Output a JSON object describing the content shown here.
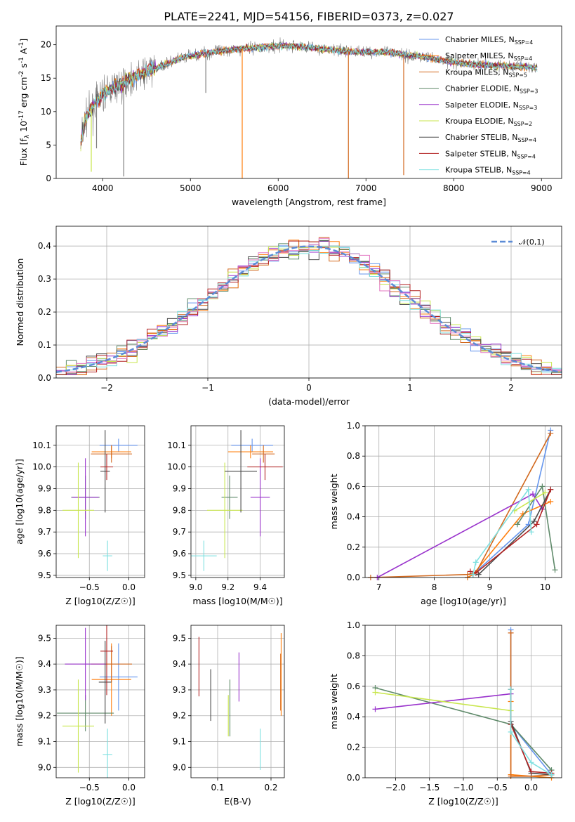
{
  "figure_title": "PLATE=2241, MJD=54156, FIBERID=0373, z=0.027",
  "colors": {
    "Chabrier MILES": "#6495ed",
    "Salpeter MILES": "#ff7f0e",
    "Kroupa MILES": "#d2691e",
    "Chabrier ELODIE": "#5f8a6a",
    "Salpeter ELODIE": "#9932cc",
    "Kroupa ELODIE": "#c8e64c",
    "Chabrier STELIB": "#4a4a4a",
    "Salpeter STELIB": "#b22222",
    "Kroupa STELIB": "#7ee0e0",
    "spectrum": "#808080",
    "normal": "#5b8bd6"
  },
  "chart_data": [
    {
      "id": "spectrum",
      "type": "line",
      "title": "PLATE=2241, MJD=54156, FIBERID=0373, z=0.027",
      "xlabel": "wavelength [Angstrom, rest frame]",
      "ylabel": "Flux [f_λ 10^-17 erg cm^-2 s^-1 A^-1]",
      "xlim": [
        3470,
        9230
      ],
      "ylim": [
        0,
        22.8
      ],
      "xticks": [
        4000,
        5000,
        6000,
        7000,
        8000,
        9000
      ],
      "yticks": [
        0,
        5,
        10,
        15,
        20
      ],
      "grid": false,
      "legend_position": "top-right",
      "legend": [
        {
          "label": "Chabrier MILES, N_SSP=4",
          "color": "#6495ed"
        },
        {
          "label": "Salpeter MILES, N_SSP=4",
          "color": "#ff7f0e"
        },
        {
          "label": "Kroupa MILES, N_SSP=5",
          "color": "#d2691e"
        },
        {
          "label": "Chabrier ELODIE, N_SSP=3",
          "color": "#5f8a6a"
        },
        {
          "label": "Salpeter ELODIE, N_SSP=3",
          "color": "#9932cc"
        },
        {
          "label": "Kroupa ELODIE, N_SSP=2",
          "color": "#c8e64c"
        },
        {
          "label": "Chabrier STELIB, N_SSP=4",
          "color": "#4a4a4a"
        },
        {
          "label": "Salpeter STELIB, N_SSP=4",
          "color": "#b22222"
        },
        {
          "label": "Kroupa STELIB, N_SSP=4",
          "color": "#7ee0e0"
        }
      ],
      "continuum": {
        "x": [
          3750,
          3800,
          3900,
          4000,
          4100,
          4200,
          4300,
          4500,
          4700,
          4900,
          5100,
          5300,
          5500,
          5700,
          5900,
          6100,
          6300,
          6500,
          6700,
          6900,
          7100,
          7300,
          7500,
          7700,
          7900,
          8100,
          8300,
          8500,
          8700,
          8950
        ],
        "y": [
          5.0,
          9.0,
          11.0,
          12.5,
          13.5,
          14.0,
          14.8,
          16.0,
          17.0,
          18.0,
          18.6,
          19.0,
          19.3,
          19.5,
          19.8,
          19.8,
          19.7,
          19.4,
          19.1,
          18.9,
          18.9,
          18.8,
          18.4,
          18.1,
          17.6,
          17.2,
          17.0,
          16.9,
          16.7,
          16.6
        ]
      },
      "dips": [
        {
          "x": 5590,
          "y": 0.0,
          "color": "#ff7f0e"
        },
        {
          "x": 6800,
          "y": 0.0,
          "color": "#d2691e"
        },
        {
          "x": 7430,
          "y": 0.5,
          "color": "#d2691e"
        },
        {
          "x": 3870,
          "y": 1.0,
          "color": "#c8e64c"
        },
        {
          "x": 4240,
          "y": 0.3,
          "color": "#808080"
        },
        {
          "x": 5175,
          "y": 12.8,
          "color": "#808080"
        },
        {
          "x": 3930,
          "y": 4.5,
          "color": "#808080"
        }
      ]
    },
    {
      "id": "residual_hist",
      "type": "line",
      "xlabel": "(data-model)/error",
      "ylabel": "Normed distribution",
      "xlim": [
        -2.5,
        2.5
      ],
      "ylim": [
        0,
        0.46
      ],
      "xticks": [
        -2,
        -1,
        0,
        1,
        2
      ],
      "yticks": [
        0.0,
        0.1,
        0.2,
        0.3,
        0.4
      ],
      "grid": true,
      "legend_position": "top-right",
      "legend": [
        {
          "label": "𝒩(0,1)",
          "color": "#5b8bd6"
        }
      ],
      "bin_width": 0.1,
      "note": "step histograms of normalized residuals, one per model, plus a unit normal curve"
    },
    {
      "id": "age_vs_Z",
      "type": "scatter",
      "xlabel": "Z [log10(Z/Z☉)]",
      "ylabel": "age [log10(age/yr)]",
      "xlim": [
        -0.92,
        0.2
      ],
      "ylim": [
        9.49,
        10.19
      ],
      "xticks": [
        -0.5,
        0.0
      ],
      "yticks": [
        9.5,
        9.6,
        9.7,
        9.8,
        9.9,
        10.0,
        10.1
      ],
      "grid": true,
      "points": [
        {
          "model": "Chabrier MILES",
          "x": -0.13,
          "xerr": 0.24,
          "y": 10.1,
          "yerr": 0.03
        },
        {
          "model": "Salpeter MILES",
          "x": -0.22,
          "xerr": 0.25,
          "y": 10.07,
          "yerr": 0.03
        },
        {
          "model": "Kroupa MILES",
          "x": -0.22,
          "xerr": 0.26,
          "y": 10.06,
          "yerr": 0.04
        },
        {
          "model": "Chabrier ELODIE",
          "x": -0.55,
          "xerr": 0.18,
          "y": 9.86,
          "yerr": 0.1
        },
        {
          "model": "Salpeter ELODIE",
          "x": -0.55,
          "xerr": 0.17,
          "y": 9.86,
          "yerr": 0.18
        },
        {
          "model": "Kroupa ELODIE",
          "x": -0.64,
          "xerr": 0.2,
          "y": 9.8,
          "yerr": 0.22
        },
        {
          "model": "Chabrier STELIB",
          "x": -0.3,
          "xerr": 0.06,
          "y": 9.98,
          "yerr": 0.19
        },
        {
          "model": "Salpeter STELIB",
          "x": -0.28,
          "xerr": 0.08,
          "y": 10.0,
          "yerr": 0.06
        },
        {
          "model": "Kroupa STELIB",
          "x": -0.27,
          "xerr": 0.06,
          "y": 9.59,
          "yerr": 0.07
        }
      ]
    },
    {
      "id": "age_vs_mass",
      "type": "scatter",
      "xlabel": "mass [log10(M/M☉)]",
      "ylabel": "",
      "xlim": [
        8.97,
        9.55
      ],
      "ylim": [
        9.49,
        10.19
      ],
      "xticks": [
        9.0,
        9.2,
        9.4
      ],
      "yticks": [
        9.5,
        9.6,
        9.7,
        9.8,
        9.9,
        10.0,
        10.1
      ],
      "grid": true,
      "points": [
        {
          "model": "Chabrier MILES",
          "x": 9.35,
          "xerr": 0.13,
          "y": 10.1,
          "yerr": 0.03
        },
        {
          "model": "Salpeter MILES",
          "x": 9.34,
          "xerr": 0.14,
          "y": 10.07,
          "yerr": 0.03
        },
        {
          "model": "Kroupa MILES",
          "x": 9.42,
          "xerr": 0.07,
          "y": 10.06,
          "yerr": 0.04
        },
        {
          "model": "Chabrier ELODIE",
          "x": 9.21,
          "xerr": 0.05,
          "y": 9.86,
          "yerr": 0.1
        },
        {
          "model": "Salpeter ELODIE",
          "x": 9.4,
          "xerr": 0.06,
          "y": 9.86,
          "yerr": 0.18
        },
        {
          "model": "Kroupa ELODIE",
          "x": 9.18,
          "xerr": 0.11,
          "y": 9.8,
          "yerr": 0.22
        },
        {
          "model": "Chabrier STELIB",
          "x": 9.28,
          "xerr": 0.1,
          "y": 9.98,
          "yerr": 0.19
        },
        {
          "model": "Salpeter STELIB",
          "x": 9.43,
          "xerr": 0.11,
          "y": 10.0,
          "yerr": 0.06
        },
        {
          "model": "Kroupa STELIB",
          "x": 9.05,
          "xerr": 0.08,
          "y": 9.59,
          "yerr": 0.07
        }
      ]
    },
    {
      "id": "weight_vs_age",
      "type": "line",
      "xlabel": "age [log10(age/yr)]",
      "ylabel": "mass weight",
      "xlim": [
        6.75,
        10.3
      ],
      "ylim": [
        0,
        1
      ],
      "xticks": [
        7,
        8,
        9,
        10
      ],
      "yticks": [
        0.0,
        0.2,
        0.4,
        0.6,
        0.8,
        1.0
      ],
      "grid": true,
      "series": [
        {
          "model": "Chabrier MILES",
          "x": [
            8.6,
            8.7,
            9.7,
            10.1
          ],
          "y": [
            0.0,
            0.02,
            0.35,
            0.97
          ]
        },
        {
          "model": "Salpeter MILES",
          "x": [
            8.6,
            8.7,
            9.6,
            10.1
          ],
          "y": [
            0.0,
            0.02,
            0.42,
            0.5
          ]
        },
        {
          "model": "Kroupa MILES",
          "x": [
            6.85,
            8.6,
            8.75,
            10.1
          ],
          "y": [
            0.0,
            0.02,
            0.03,
            0.95
          ]
        },
        {
          "model": "Chabrier ELODIE",
          "x": [
            9.5,
            9.95,
            10.18
          ],
          "y": [
            0.35,
            0.6,
            0.05
          ]
        },
        {
          "model": "Salpeter ELODIE",
          "x": [
            6.97,
            9.78,
            9.95
          ],
          "y": [
            0.0,
            0.55,
            0.45
          ]
        },
        {
          "model": "Kroupa ELODIE",
          "x": [
            9.45,
            10.0
          ],
          "y": [
            0.44,
            0.56
          ]
        },
        {
          "model": "Chabrier STELIB",
          "x": [
            8.7,
            8.8,
            9.8,
            10.1
          ],
          "y": [
            0.02,
            0.02,
            0.37,
            0.58
          ]
        },
        {
          "model": "Salpeter STELIB",
          "x": [
            8.65,
            8.75,
            9.85,
            10.1
          ],
          "y": [
            0.04,
            0.03,
            0.35,
            0.58
          ]
        },
        {
          "model": "Kroupa STELIB",
          "x": [
            8.7,
            8.75,
            9.7,
            9.75
          ],
          "y": [
            0.02,
            0.1,
            0.58,
            0.3
          ]
        }
      ]
    },
    {
      "id": "mass_vs_Z",
      "type": "scatter",
      "xlabel": "Z [log10(Z/Z☉)]",
      "ylabel": "mass [log10(M/M☉)]",
      "xlim": [
        -0.92,
        0.2
      ],
      "ylim": [
        8.96,
        9.55
      ],
      "xticks": [
        -0.5,
        0.0
      ],
      "yticks": [
        9.0,
        9.1,
        9.2,
        9.3,
        9.4,
        9.5
      ],
      "grid": true,
      "points": [
        {
          "model": "Chabrier MILES",
          "x": -0.13,
          "xerr": 0.24,
          "y": 9.35,
          "yerr": 0.13
        },
        {
          "model": "Salpeter MILES",
          "x": -0.22,
          "xerr": 0.25,
          "y": 9.34,
          "yerr": 0.14
        },
        {
          "model": "Kroupa MILES",
          "x": -0.22,
          "xerr": 0.26,
          "y": 9.4,
          "yerr": 0.07
        },
        {
          "model": "Chabrier ELODIE",
          "x": -0.55,
          "xerr": 0.36,
          "y": 9.21,
          "yerr": 0.07
        },
        {
          "model": "Salpeter ELODIE",
          "x": -0.55,
          "xerr": 0.26,
          "y": 9.4,
          "yerr": 0.14
        },
        {
          "model": "Kroupa ELODIE",
          "x": -0.64,
          "xerr": 0.2,
          "y": 9.16,
          "yerr": 0.18
        },
        {
          "model": "Chabrier STELIB",
          "x": -0.3,
          "xerr": 0.08,
          "y": 9.33,
          "yerr": 0.16
        },
        {
          "model": "Salpeter STELIB",
          "x": -0.28,
          "xerr": 0.08,
          "y": 9.45,
          "yerr": 0.17
        },
        {
          "model": "Kroupa STELIB",
          "x": -0.27,
          "xerr": 0.06,
          "y": 9.05,
          "yerr": 0.1
        }
      ]
    },
    {
      "id": "mass_vs_EBV",
      "type": "scatter",
      "xlabel": "E(B-V)",
      "ylabel": "",
      "xlim": [
        0.05,
        0.225
      ],
      "ylim": [
        8.96,
        9.55
      ],
      "xticks": [
        0.1,
        0.2
      ],
      "yticks": [
        9.0,
        9.1,
        9.2,
        9.3,
        9.4,
        9.5
      ],
      "grid": true,
      "points": [
        {
          "model": "Salpeter STELIB",
          "x": 0.065,
          "y": 9.39,
          "yerr": 0.115
        },
        {
          "model": "Chabrier STELIB",
          "x": 0.087,
          "y": 9.28,
          "yerr": 0.1
        },
        {
          "model": "Kroupa ELODIE",
          "x": 0.12,
          "y": 9.2,
          "yerr": 0.08
        },
        {
          "model": "Chabrier ELODIE",
          "x": 0.123,
          "y": 9.23,
          "yerr": 0.11
        },
        {
          "model": "Salpeter ELODIE",
          "x": 0.14,
          "y": 9.35,
          "yerr": 0.095
        },
        {
          "model": "Kroupa STELIB",
          "x": 0.18,
          "y": 9.07,
          "yerr": 0.08
        },
        {
          "model": "Kroupa MILES",
          "x": 0.218,
          "y": 9.33,
          "yerr": 0.11
        },
        {
          "model": "Salpeter MILES",
          "x": 0.219,
          "y": 9.36,
          "yerr": 0.16
        }
      ]
    },
    {
      "id": "weight_vs_Z",
      "type": "line",
      "xlabel": "Z [log10(Z/Z☉)]",
      "ylabel": "mass weight",
      "xlim": [
        -2.45,
        0.45
      ],
      "ylim": [
        0,
        1
      ],
      "xticks": [
        -2.0,
        -1.5,
        -1.0,
        -0.5,
        0.0
      ],
      "yticks": [
        0.0,
        0.2,
        0.4,
        0.6,
        0.8,
        1.0
      ],
      "grid": true,
      "series": [
        {
          "model": "Chabrier MILES",
          "x": [
            -0.3,
            -0.3,
            0.3
          ],
          "y": [
            0.97,
            0.35,
            0.02
          ]
        },
        {
          "model": "Salpeter MILES",
          "x": [
            -0.3,
            -0.3,
            0.3
          ],
          "y": [
            0.5,
            0.02,
            0.0
          ]
        },
        {
          "model": "Kroupa MILES",
          "x": [
            -0.3,
            -0.3,
            0.0,
            0.3
          ],
          "y": [
            0.95,
            0.01,
            0.01,
            0.02
          ]
        },
        {
          "model": "Chabrier ELODIE",
          "x": [
            -2.3,
            -0.3,
            0.3,
            0.3
          ],
          "y": [
            0.59,
            0.35,
            0.05,
            0.02
          ]
        },
        {
          "model": "Salpeter ELODIE",
          "x": [
            -2.3,
            -0.3
          ],
          "y": [
            0.45,
            0.55
          ]
        },
        {
          "model": "Kroupa ELODIE",
          "x": [
            -2.3,
            -0.3
          ],
          "y": [
            0.56,
            0.44
          ]
        },
        {
          "model": "Chabrier STELIB",
          "x": [
            -0.3,
            -0.3,
            0.0,
            0.3
          ],
          "y": [
            0.58,
            0.37,
            0.03,
            0.02
          ]
        },
        {
          "model": "Salpeter STELIB",
          "x": [
            -0.3,
            -0.3,
            0.0,
            0.3
          ],
          "y": [
            0.58,
            0.35,
            0.04,
            0.03
          ]
        },
        {
          "model": "Kroupa STELIB",
          "x": [
            -0.3,
            -0.3,
            0.0,
            0.3
          ],
          "y": [
            0.58,
            0.3,
            0.1,
            0.02
          ]
        }
      ]
    }
  ]
}
